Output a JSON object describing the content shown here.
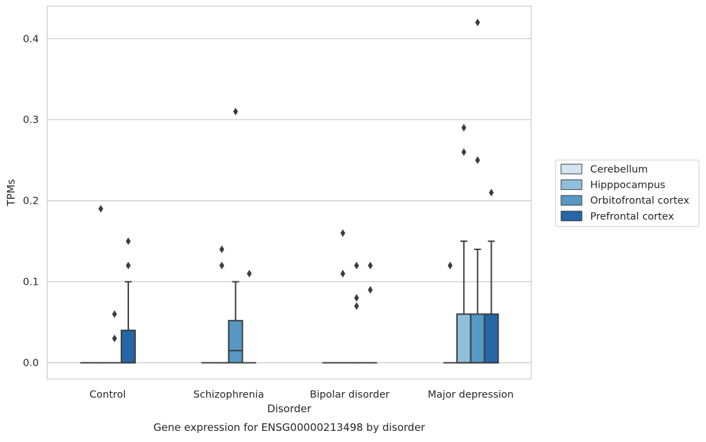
{
  "chart_data": {
    "type": "box",
    "title": "",
    "caption": "Gene expression for ENSG00000213498 by disorder",
    "xlabel": "Disorder",
    "ylabel": "TPMs",
    "ylim": [
      -0.02,
      0.44
    ],
    "yticks": [
      0.0,
      0.1,
      0.2,
      0.3,
      0.4
    ],
    "ytick_labels": [
      "0.0",
      "0.1",
      "0.2",
      "0.3",
      "0.4"
    ],
    "categories": [
      "Control",
      "Schizophrenia",
      "Bipolar disorder",
      "Major depression"
    ],
    "grid": "horizontal",
    "legend_position": "right",
    "series": [
      {
        "name": "Cerebellum",
        "color": "#d3e4f3",
        "boxes": [
          {
            "category": "Control",
            "q1": 0,
            "median": 0,
            "q3": 0,
            "whisker_low": 0,
            "whisker_high": 0,
            "outliers": []
          },
          {
            "category": "Schizophrenia",
            "q1": 0,
            "median": 0,
            "q3": 0,
            "whisker_low": 0,
            "whisker_high": 0,
            "outliers": []
          },
          {
            "category": "Bipolar disorder",
            "q1": 0,
            "median": 0,
            "q3": 0,
            "whisker_low": 0,
            "whisker_high": 0,
            "outliers": []
          },
          {
            "category": "Major depression",
            "q1": 0,
            "median": 0,
            "q3": 0,
            "whisker_low": 0,
            "whisker_high": 0,
            "outliers": [
              0.12
            ]
          }
        ]
      },
      {
        "name": "Hipppocampus",
        "color": "#90bfdc",
        "boxes": [
          {
            "category": "Control",
            "q1": 0,
            "median": 0,
            "q3": 0,
            "whisker_low": 0,
            "whisker_high": 0,
            "outliers": [
              0.19
            ]
          },
          {
            "category": "Schizophrenia",
            "q1": 0,
            "median": 0,
            "q3": 0,
            "whisker_low": 0,
            "whisker_high": 0,
            "outliers": [
              0.14,
              0.12
            ]
          },
          {
            "category": "Bipolar disorder",
            "q1": 0,
            "median": 0,
            "q3": 0,
            "whisker_low": 0,
            "whisker_high": 0,
            "outliers": [
              0.16,
              0.11
            ]
          },
          {
            "category": "Major depression",
            "q1": 0,
            "median": 0,
            "q3": 0.06,
            "whisker_low": 0,
            "whisker_high": 0.15,
            "outliers": [
              0.29,
              0.26
            ]
          }
        ]
      },
      {
        "name": "Orbitofrontal cortex",
        "color": "#5698c6",
        "boxes": [
          {
            "category": "Control",
            "q1": 0,
            "median": 0,
            "q3": 0,
            "whisker_low": 0,
            "whisker_high": 0,
            "outliers": [
              0.06,
              0.03
            ]
          },
          {
            "category": "Schizophrenia",
            "q1": 0,
            "median": 0.015,
            "q3": 0.052,
            "whisker_low": 0,
            "whisker_high": 0.1,
            "outliers": [
              0.31
            ]
          },
          {
            "category": "Bipolar disorder",
            "q1": 0,
            "median": 0,
            "q3": 0,
            "whisker_low": 0,
            "whisker_high": 0,
            "outliers": [
              0.12,
              0.08,
              0.07
            ]
          },
          {
            "category": "Major depression",
            "q1": 0,
            "median": 0,
            "q3": 0.06,
            "whisker_low": 0,
            "whisker_high": 0.14,
            "outliers": [
              0.42,
              0.25
            ]
          }
        ]
      },
      {
        "name": "Prefrontal cortex",
        "color": "#2466a6",
        "boxes": [
          {
            "category": "Control",
            "q1": 0,
            "median": 0,
            "q3": 0.04,
            "whisker_low": 0,
            "whisker_high": 0.1,
            "outliers": [
              0.15,
              0.12
            ]
          },
          {
            "category": "Schizophrenia",
            "q1": 0,
            "median": 0,
            "q3": 0,
            "whisker_low": 0,
            "whisker_high": 0,
            "outliers": [
              0.11
            ]
          },
          {
            "category": "Bipolar disorder",
            "q1": 0,
            "median": 0,
            "q3": 0,
            "whisker_low": 0,
            "whisker_high": 0,
            "outliers": [
              0.12,
              0.09
            ]
          },
          {
            "category": "Major depression",
            "q1": 0,
            "median": 0,
            "q3": 0.06,
            "whisker_low": 0,
            "whisker_high": 0.15,
            "outliers": [
              0.21
            ]
          }
        ]
      }
    ]
  }
}
